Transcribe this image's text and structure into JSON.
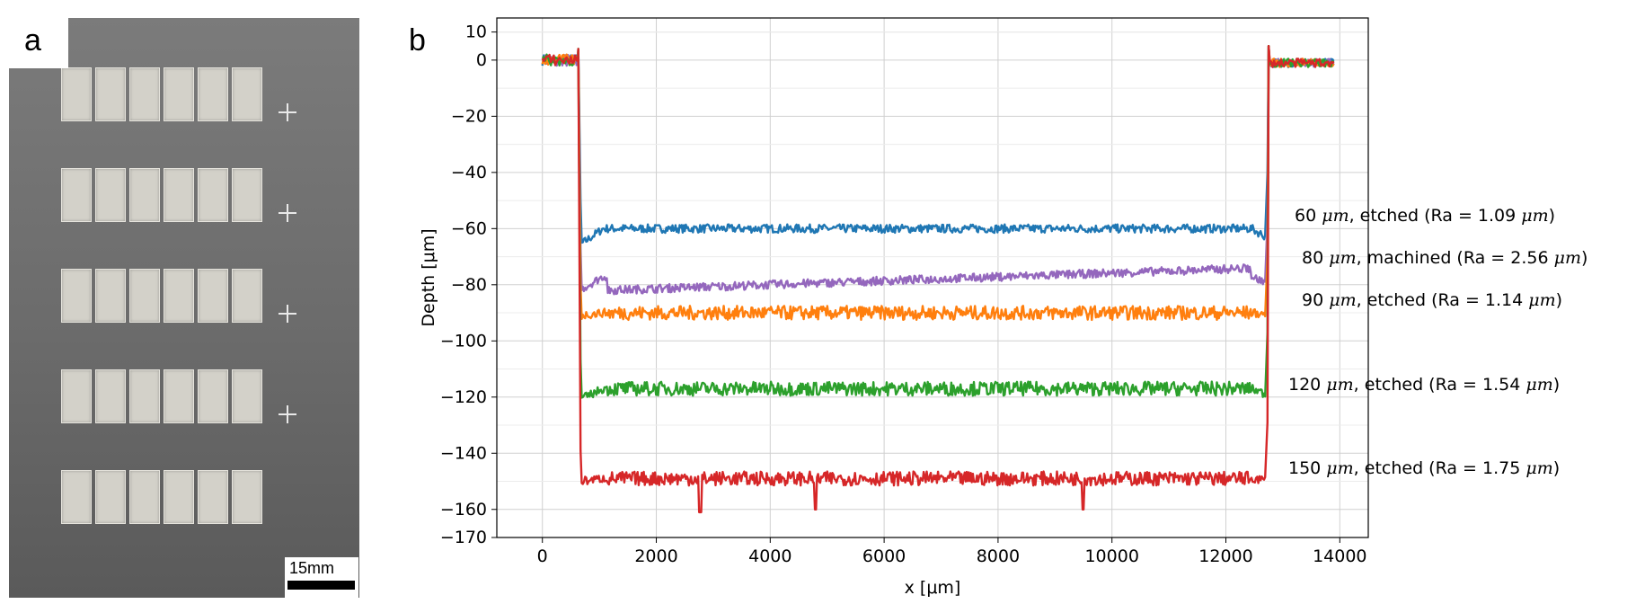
{
  "panel_a": {
    "label": "a",
    "scale_label": "15mm",
    "pad_grid": {
      "rows": 5,
      "cols": 6
    },
    "cross_count": 4
  },
  "chart_data": {
    "panel_label": "b",
    "type": "line",
    "title": "",
    "xlabel": "x [μm]",
    "ylabel": "Depth [μm]",
    "xlim": [
      -800,
      14500
    ],
    "ylim": [
      -170,
      15
    ],
    "x_ticks": [
      0,
      2000,
      4000,
      6000,
      8000,
      10000,
      12000,
      14000
    ],
    "y_ticks": [
      10,
      0,
      -20,
      -40,
      -60,
      -80,
      -100,
      -120,
      -140,
      -160,
      -170
    ],
    "grid": true,
    "legend": "right-side text annotations",
    "colors": {
      "blue": "#1f77b4",
      "orange": "#ff7f0e",
      "green": "#2ca02c",
      "red": "#d62728",
      "purple": "#9467bd"
    },
    "series": [
      {
        "depth": -60,
        "color": "#1f77b4",
        "dip": -66,
        "label_num": "60",
        "label_unit": "μm",
        "label_rest": ", etched (Ra = 1.09 ",
        "label_unit2": "μm",
        "label_end": ")"
      },
      {
        "depth": -77,
        "color": "#9467bd",
        "dip": -82,
        "label_num": "80",
        "label_unit": "μm",
        "label_rest": ", machined (Ra = 2.56 ",
        "label_unit2": "μm",
        "label_end": ")"
      },
      {
        "depth": -90,
        "color": "#ff7f0e",
        "dip": -91,
        "label_num": "90",
        "label_unit": "μm",
        "label_rest": ", etched (Ra = 1.14 ",
        "label_unit2": "μm",
        "label_end": ")"
      },
      {
        "depth": -117,
        "color": "#2ca02c",
        "dip": -121,
        "label_num": "120",
        "label_unit": "μm",
        "label_rest": ", etched (Ra = 1.54 ",
        "label_unit2": "μm",
        "label_end": ")"
      },
      {
        "depth": -149,
        "color": "#d62728",
        "dip": -150,
        "label_num": "150",
        "label_unit": "μm",
        "label_rest": ", etched (Ra = 1.75 ",
        "label_unit2": "μm",
        "label_end": ")"
      }
    ],
    "profile": {
      "x_start": 0,
      "x_left_edge": 650,
      "x_right_edge": 12750,
      "x_end": 13900
    }
  }
}
